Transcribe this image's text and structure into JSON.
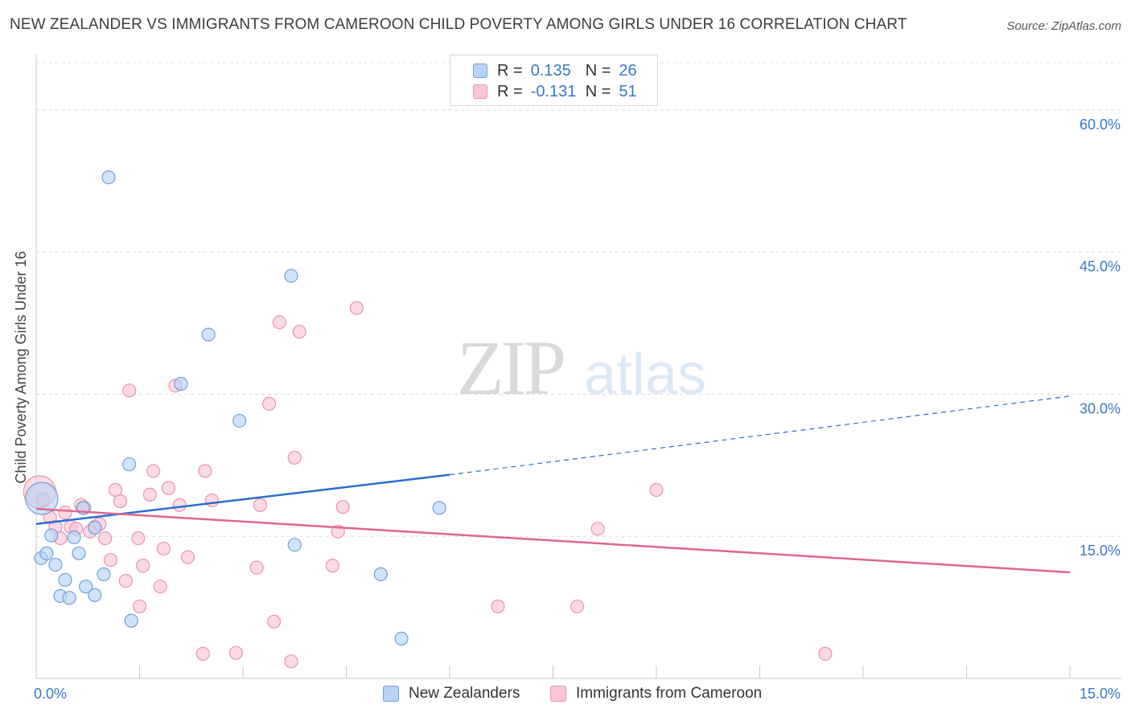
{
  "header": {
    "title": "NEW ZEALANDER VS IMMIGRANTS FROM CAMEROON CHILD POVERTY AMONG GIRLS UNDER 16 CORRELATION CHART",
    "source": "Source: ZipAtlas.com"
  },
  "legend": {
    "r_label": "R =",
    "n_label": "N =",
    "rows": [
      {
        "r": "0.135",
        "n": "26"
      },
      {
        "r": "-0.131",
        "n": "51"
      }
    ]
  },
  "bottom_legend": [
    "New Zealanders",
    "Immigrants from Cameroon"
  ],
  "colors": {
    "blue_fill": "#b8d4f4",
    "blue_stroke": "#6fa0dc",
    "blue_line": "#2a6ecf",
    "pink_fill": "#f9c6d6",
    "pink_stroke": "#ec93b0",
    "pink_line": "#e0668f",
    "axis_text": "#3a78c9",
    "grid": "#dcdcdc"
  },
  "chart_data": {
    "type": "scatter",
    "title": "NEW ZEALANDER VS IMMIGRANTS FROM CAMEROON CHILD POVERTY AMONG GIRLS UNDER 16 CORRELATION CHART",
    "xlabel": "",
    "ylabel": "Child Poverty Among Girls Under 16",
    "xlim": [
      0,
      15
    ],
    "ylim": [
      0,
      65
    ],
    "x_tick_labels": [
      "0.0%",
      "15.0%"
    ],
    "y_ticks": [
      15,
      30,
      45,
      60
    ],
    "y_tick_labels": [
      "15.0%",
      "30.0%",
      "45.0%",
      "60.0%"
    ],
    "grid": true,
    "legend_position": "top-center",
    "watermark": "ZIPatlas",
    "series": [
      {
        "name": "New Zealanders",
        "R": 0.135,
        "N": 26,
        "trend": {
          "x0": 0,
          "y0": 16.3,
          "x1": 6.0,
          "y1": 21.5,
          "dashed_to_x": 15,
          "dashed_to_y": 29.8
        },
        "points": [
          {
            "x": 0.08,
            "y": 19.0,
            "big": true
          },
          {
            "x": 0.07,
            "y": 12.7
          },
          {
            "x": 0.15,
            "y": 13.2
          },
          {
            "x": 0.22,
            "y": 15.1
          },
          {
            "x": 0.28,
            "y": 12.0
          },
          {
            "x": 0.35,
            "y": 8.7
          },
          {
            "x": 0.42,
            "y": 10.4
          },
          {
            "x": 0.48,
            "y": 8.5
          },
          {
            "x": 0.55,
            "y": 14.9
          },
          {
            "x": 0.62,
            "y": 13.2
          },
          {
            "x": 0.72,
            "y": 9.7
          },
          {
            "x": 0.85,
            "y": 8.8
          },
          {
            "x": 0.98,
            "y": 11.0
          },
          {
            "x": 0.68,
            "y": 18.0
          },
          {
            "x": 0.85,
            "y": 15.9
          },
          {
            "x": 1.35,
            "y": 22.6
          },
          {
            "x": 1.38,
            "y": 6.1
          },
          {
            "x": 1.05,
            "y": 52.9
          },
          {
            "x": 2.1,
            "y": 31.1
          },
          {
            "x": 2.5,
            "y": 36.3
          },
          {
            "x": 2.95,
            "y": 27.2
          },
          {
            "x": 3.7,
            "y": 42.5
          },
          {
            "x": 3.75,
            "y": 14.1
          },
          {
            "x": 5.0,
            "y": 11.0
          },
          {
            "x": 5.3,
            "y": 4.2
          },
          {
            "x": 5.85,
            "y": 18.0
          }
        ]
      },
      {
        "name": "Immigrants from Cameroon",
        "R": -0.131,
        "N": 51,
        "trend": {
          "x0": 0,
          "y0": 17.9,
          "x1": 15,
          "y1": 11.2
        },
        "points": [
          {
            "x": 0.05,
            "y": 19.7,
            "big": true
          },
          {
            "x": 0.1,
            "y": 18.9
          },
          {
            "x": 0.2,
            "y": 17.0
          },
          {
            "x": 0.28,
            "y": 16.0
          },
          {
            "x": 0.35,
            "y": 14.8
          },
          {
            "x": 0.42,
            "y": 17.5
          },
          {
            "x": 0.5,
            "y": 16.0
          },
          {
            "x": 0.58,
            "y": 15.8
          },
          {
            "x": 0.65,
            "y": 18.3
          },
          {
            "x": 0.7,
            "y": 18.0
          },
          {
            "x": 0.78,
            "y": 15.5
          },
          {
            "x": 0.85,
            "y": 16.0
          },
          {
            "x": 0.92,
            "y": 16.3
          },
          {
            "x": 1.0,
            "y": 14.8
          },
          {
            "x": 1.08,
            "y": 12.5
          },
          {
            "x": 1.15,
            "y": 19.9
          },
          {
            "x": 1.22,
            "y": 18.7
          },
          {
            "x": 1.3,
            "y": 10.3
          },
          {
            "x": 1.35,
            "y": 30.4
          },
          {
            "x": 1.48,
            "y": 14.8
          },
          {
            "x": 1.5,
            "y": 7.6
          },
          {
            "x": 1.55,
            "y": 11.9
          },
          {
            "x": 1.65,
            "y": 19.4
          },
          {
            "x": 1.7,
            "y": 21.9
          },
          {
            "x": 1.8,
            "y": 9.7
          },
          {
            "x": 1.85,
            "y": 13.7
          },
          {
            "x": 1.92,
            "y": 20.1
          },
          {
            "x": 2.02,
            "y": 30.9
          },
          {
            "x": 2.08,
            "y": 18.3
          },
          {
            "x": 2.2,
            "y": 12.8
          },
          {
            "x": 2.42,
            "y": 2.6
          },
          {
            "x": 2.45,
            "y": 21.9
          },
          {
            "x": 2.55,
            "y": 18.8
          },
          {
            "x": 2.9,
            "y": 2.7
          },
          {
            "x": 3.2,
            "y": 11.7
          },
          {
            "x": 3.25,
            "y": 18.3
          },
          {
            "x": 3.38,
            "y": 29.0
          },
          {
            "x": 3.45,
            "y": 6.0
          },
          {
            "x": 3.53,
            "y": 37.6
          },
          {
            "x": 3.7,
            "y": 1.8
          },
          {
            "x": 3.75,
            "y": 23.3
          },
          {
            "x": 3.82,
            "y": 36.6
          },
          {
            "x": 4.3,
            "y": 11.9
          },
          {
            "x": 4.38,
            "y": 15.5
          },
          {
            "x": 4.45,
            "y": 18.1
          },
          {
            "x": 4.65,
            "y": 39.1
          },
          {
            "x": 6.7,
            "y": 7.6
          },
          {
            "x": 7.85,
            "y": 7.6
          },
          {
            "x": 8.15,
            "y": 15.8
          },
          {
            "x": 9.0,
            "y": 19.9
          },
          {
            "x": 11.45,
            "y": 2.6
          }
        ]
      }
    ]
  }
}
